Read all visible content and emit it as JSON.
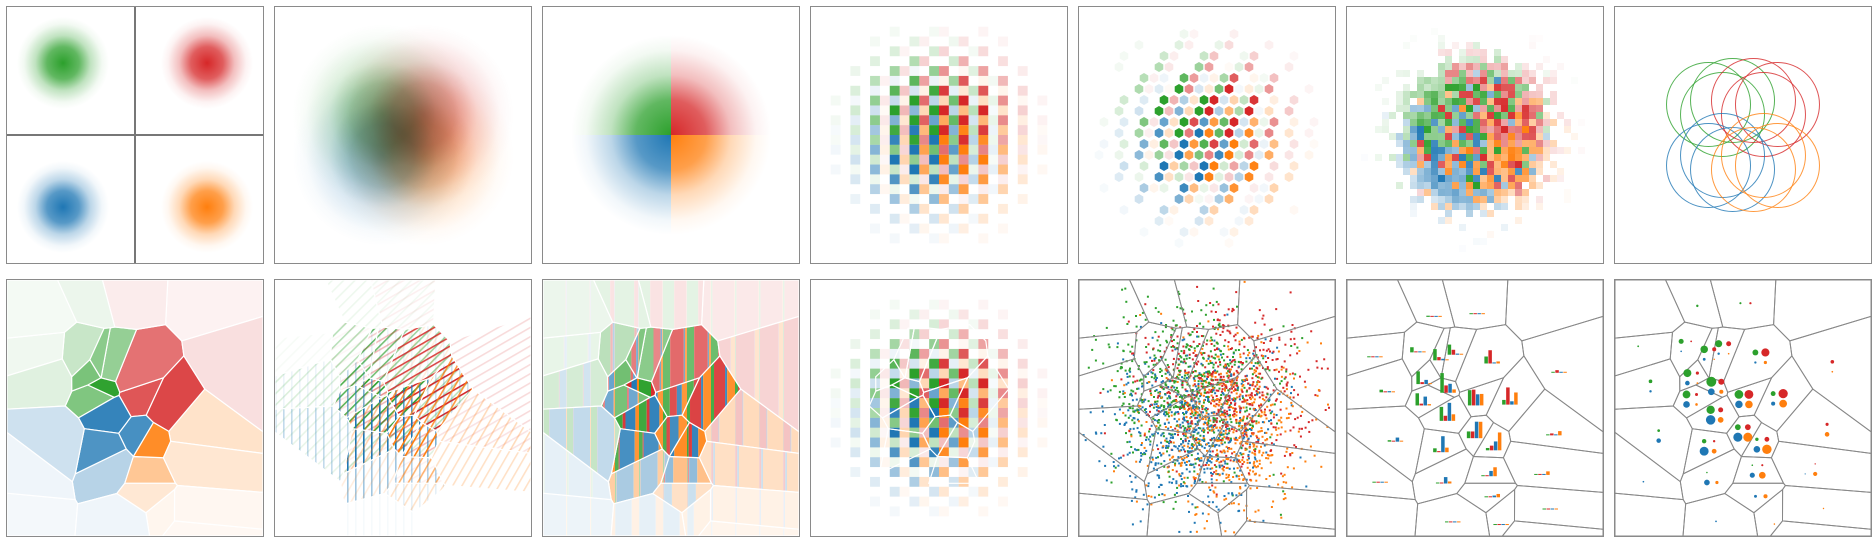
{
  "class_colors": [
    {
      "name": "green",
      "hex": "#2ca02c"
    },
    {
      "name": "red",
      "hex": "#d62728"
    },
    {
      "name": "blue",
      "hex": "#1f77b4"
    },
    {
      "name": "orange",
      "hex": "#ff7f0e"
    }
  ],
  "frame_color": "#8a8a8a",
  "cell_border_color": "#888888",
  "panels": {
    "top_row": [
      "separate-densities",
      "blended-densities",
      "quadrant-split",
      "checkerboard",
      "hexagon-mosaic",
      "random-pixels",
      "contour-circles"
    ],
    "bottom_row": [
      "voronoi-dominant",
      "voronoi-hatching",
      "voronoi-stripes",
      "voronoi-checkerboard",
      "voronoi-dots",
      "voronoi-bar-glyphs",
      "voronoi-circle-glyphs"
    ]
  }
}
